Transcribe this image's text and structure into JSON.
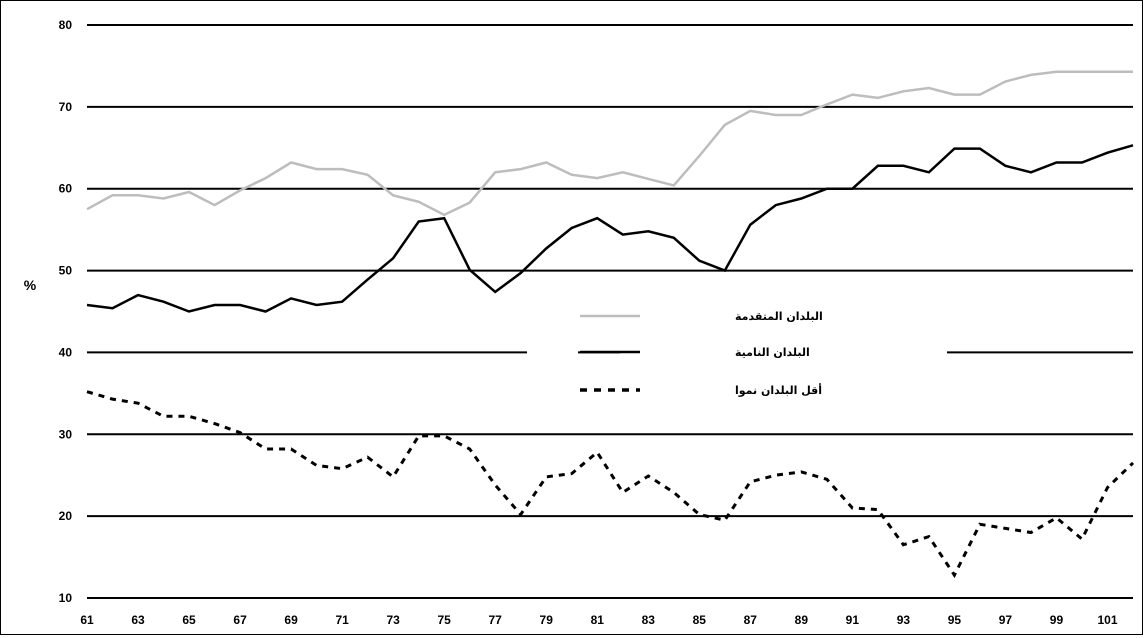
{
  "chart_data": {
    "type": "line",
    "ylabel": "%",
    "ylim": [
      10,
      80
    ],
    "xlim": [
      61,
      102
    ],
    "yticks": [
      80,
      70,
      60,
      50,
      40,
      30,
      20,
      10
    ],
    "xticks": [
      61,
      63,
      65,
      67,
      69,
      71,
      73,
      75,
      77,
      79,
      81,
      83,
      85,
      87,
      89,
      91,
      93,
      95,
      97,
      99,
      101
    ],
    "grid": true,
    "legend_position": "center",
    "x": [
      61,
      62,
      63,
      64,
      65,
      66,
      67,
      68,
      69,
      70,
      71,
      72,
      73,
      74,
      75,
      76,
      77,
      78,
      79,
      80,
      81,
      82,
      83,
      84,
      85,
      86,
      87,
      88,
      89,
      90,
      91,
      92,
      93,
      94,
      95,
      96,
      97,
      98,
      99,
      100,
      101,
      102
    ],
    "series": [
      {
        "name": "البلدان المتقدمة",
        "style": "solid",
        "color": "#bdbdbd",
        "values": [
          57.5,
          59.2,
          59.2,
          58.8,
          59.6,
          58.0,
          59.8,
          61.3,
          63.2,
          62.4,
          62.4,
          61.7,
          59.2,
          58.4,
          56.8,
          58.3,
          62.0,
          62.4,
          63.2,
          61.7,
          61.3,
          62.0,
          61.2,
          60.4,
          64.0,
          67.8,
          69.5,
          69.0,
          69.0,
          70.3,
          71.5,
          71.1,
          71.9,
          72.3,
          71.5,
          71.5,
          73.1,
          73.9,
          74.3,
          74.3,
          74.3,
          74.3
        ]
      },
      {
        "name": "البلدان النامية",
        "style": "solid",
        "color": "#000000",
        "values": [
          45.8,
          45.4,
          47.0,
          46.2,
          45.0,
          45.8,
          45.8,
          45.0,
          46.6,
          45.8,
          46.2,
          48.9,
          51.5,
          56.0,
          56.4,
          50.1,
          47.4,
          49.7,
          52.7,
          55.2,
          56.4,
          54.4,
          54.8,
          54.0,
          51.2,
          50.0,
          55.6,
          58.0,
          58.8,
          60.0,
          60.0,
          62.8,
          62.8,
          62.0,
          64.9,
          64.9,
          62.8,
          62.0,
          63.2,
          63.2,
          64.4,
          65.3
        ]
      },
      {
        "name": "أقل البلدان نموا",
        "style": "dashed",
        "color": "#000000",
        "values": [
          35.2,
          34.3,
          33.8,
          32.2,
          32.2,
          31.3,
          30.2,
          28.2,
          28.2,
          26.2,
          25.8,
          27.2,
          24.8,
          29.8,
          29.8,
          28.2,
          23.8,
          20.2,
          24.8,
          25.2,
          27.8,
          22.9,
          24.9,
          22.9,
          20.2,
          19.5,
          24.2,
          25.0,
          25.4,
          24.5,
          21.0,
          20.8,
          16.5,
          17.5,
          12.8,
          19.0,
          18.5,
          18.0,
          19.8,
          17.2,
          23.5,
          26.5
        ]
      }
    ]
  }
}
